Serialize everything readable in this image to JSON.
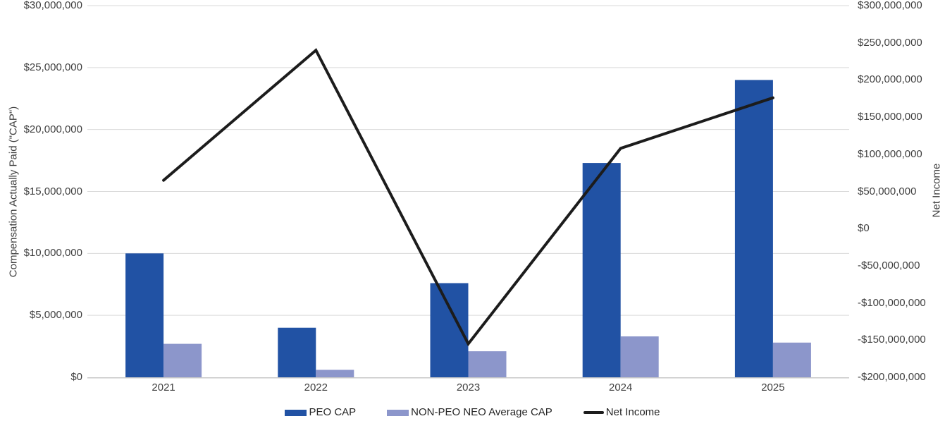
{
  "chart_data": {
    "type": "combo-bar-line",
    "categories": [
      "2021",
      "2022",
      "2023",
      "2024",
      "2025"
    ],
    "series": [
      {
        "name": "PEO CAP",
        "type": "bar",
        "axis": "left",
        "color": "#2152A4",
        "values": [
          10000000,
          4000000,
          7600000,
          17300000,
          24000000
        ]
      },
      {
        "name": "NON-PEO NEO Average CAP",
        "type": "bar",
        "axis": "left",
        "color": "#8C96CB",
        "values": [
          2700000,
          600000,
          2100000,
          3300000,
          2800000
        ]
      },
      {
        "name": "Net Income",
        "type": "line",
        "axis": "right",
        "color": "#1c1c1c",
        "values": [
          65000000,
          240000000,
          -155000000,
          108000000,
          176000000
        ]
      }
    ],
    "left_axis": {
      "title": "Compensation Actually Paid (\"CAP\")",
      "min": 0,
      "max": 30000000,
      "tick_values": [
        30000000,
        25000000,
        20000000,
        15000000,
        10000000,
        5000000,
        0
      ],
      "tick_labels": [
        "$30,000,000",
        "$25,000,000",
        "$20,000,000",
        "$15,000,000",
        "$10,000,000",
        "$5,000,000",
        "$0"
      ]
    },
    "right_axis": {
      "title": "Net Income",
      "min": -200000000,
      "max": 300000000,
      "tick_values": [
        300000000,
        250000000,
        200000000,
        150000000,
        100000000,
        50000000,
        0,
        -50000000,
        -100000000,
        -150000000,
        -200000000
      ],
      "tick_labels": [
        "$300,000,000",
        "$250,000,000",
        "$200,000,000",
        "$150,000,000",
        "$100,000,000",
        "$50,000,000",
        "$0",
        "-$50,000,000",
        "-$100,000,000",
        "-$150,000,000",
        "-$200,000,000"
      ]
    },
    "grid": "horizontal",
    "grid_color": "#d9d9d9",
    "baseline_color": "#c9c9c9",
    "legend_position": "bottom",
    "background": "#ffffff"
  }
}
